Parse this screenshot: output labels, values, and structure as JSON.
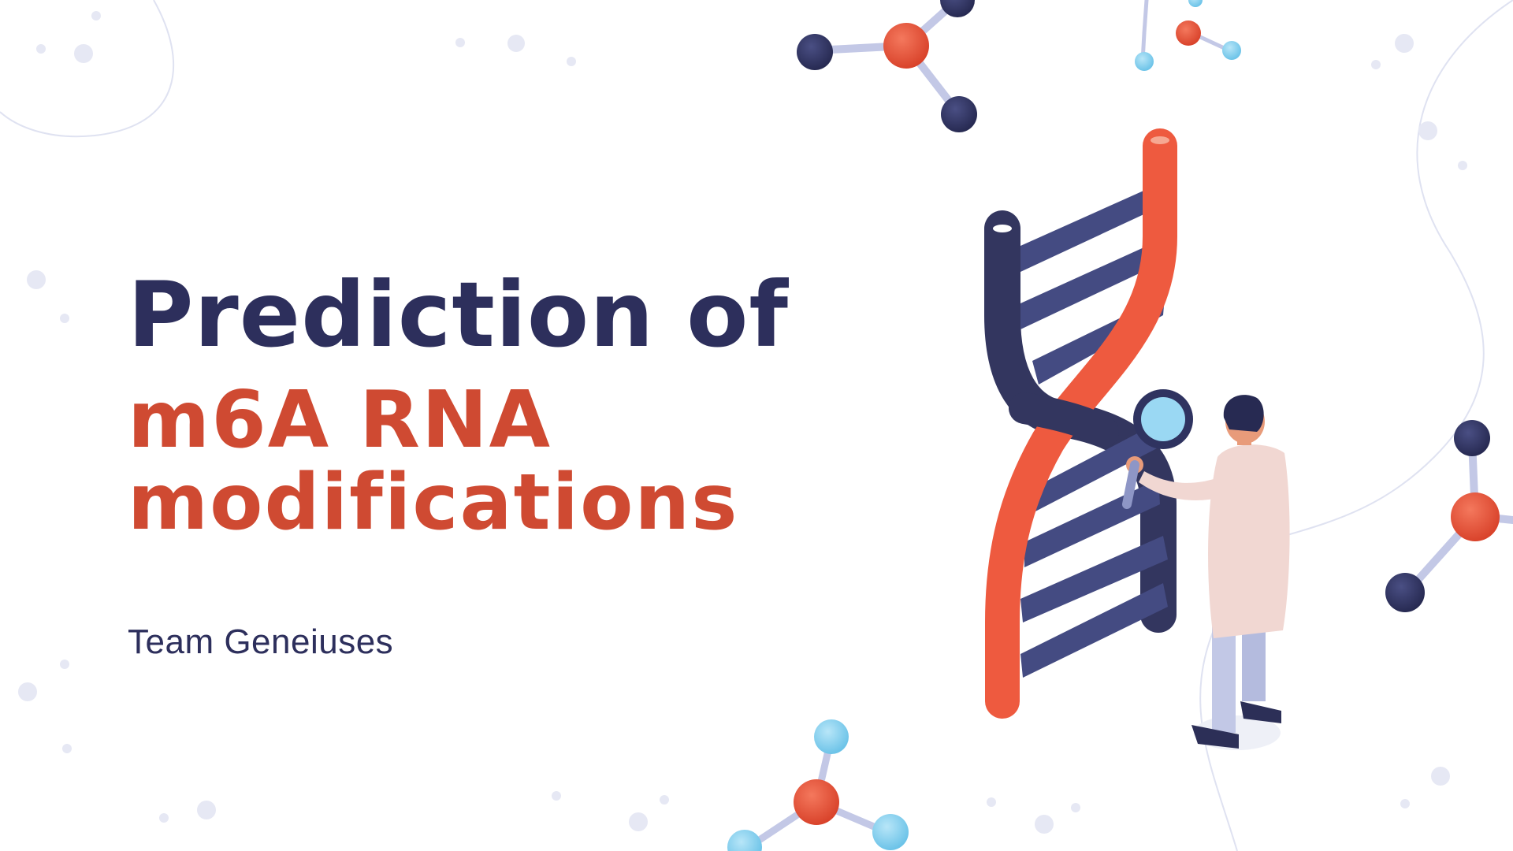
{
  "slide": {
    "title_line1": "Prediction of",
    "title_line2": "m6A RNA",
    "title_line3": "modifications",
    "subtitle": "Team Geneiuses"
  },
  "colors": {
    "navy": "#2d2f5c",
    "accent_red": "#cf4a32",
    "dna_red": "#ee5a3f",
    "dna_navy": "#33365f",
    "rung_blue": "#444b82",
    "light_blue": "#8fd3ef",
    "dot": "#e6e8f4"
  },
  "icons": {
    "dna": "dna-helix-icon",
    "scientist": "scientist-with-magnifier-icon",
    "molecules": "molecule-icon"
  }
}
